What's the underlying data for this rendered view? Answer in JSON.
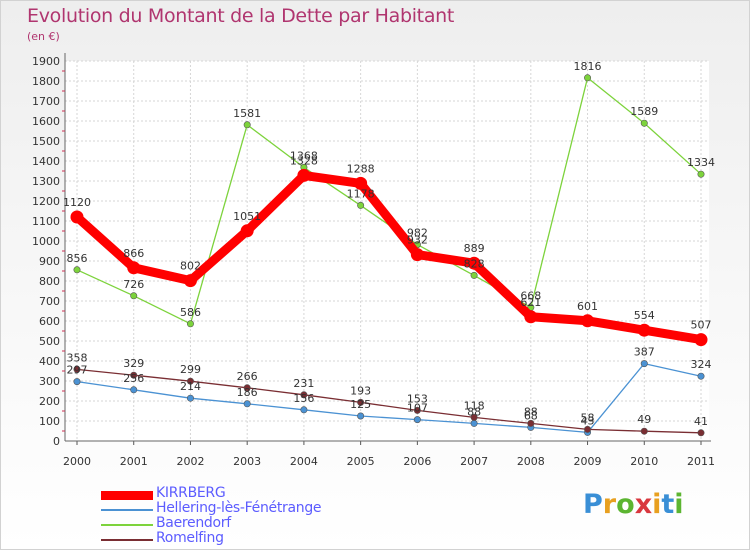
{
  "chart_data": {
    "type": "line",
    "title": "Evolution du Montant de la Dette par Habitant",
    "subtitle": "(en €)",
    "x": [
      "2000",
      "2001",
      "2002",
      "2003",
      "2004",
      "2005",
      "2006",
      "2007",
      "2008",
      "2009",
      "2010",
      "2011"
    ],
    "yticks": [
      0,
      100,
      200,
      300,
      400,
      500,
      600,
      700,
      800,
      900,
      1000,
      1100,
      1200,
      1300,
      1400,
      1500,
      1600,
      1700,
      1800,
      1900
    ],
    "ylim": [
      0,
      1900
    ],
    "grid": true,
    "legend_position": "bottom-left",
    "series": [
      {
        "name": "KIRRBERG",
        "color": "#ff0000",
        "values": [
          1120,
          866,
          802,
          1051,
          1328,
          1288,
          932,
          889,
          621,
          601,
          554,
          507
        ],
        "labels": [
          "1120",
          "866",
          "802",
          "1051",
          "1328",
          "1288",
          "932",
          "889",
          "621",
          "601",
          "554",
          "507"
        ]
      },
      {
        "name": "Hellering-lès-Fénétrange",
        "color": "#4b92d3",
        "values": [
          297,
          256,
          214,
          186,
          156,
          125,
          107,
          88,
          68,
          43,
          387,
          324
        ],
        "labels": [
          "297",
          "256",
          "214",
          "186",
          "156",
          "125",
          "107",
          "88",
          "68",
          "43",
          "387",
          "324"
        ]
      },
      {
        "name": "Baerendorf",
        "color": "#7dd33c",
        "values": [
          856,
          726,
          586,
          1581,
          1368,
          1178,
          982,
          828,
          668,
          1816,
          1589,
          1334
        ],
        "labels": [
          "856",
          "726",
          "586",
          "1581",
          "1368",
          "1178",
          "982",
          "828",
          "668",
          "1816",
          "1589",
          "1334"
        ]
      },
      {
        "name": "Romelfing",
        "color": "#7a2e33",
        "values": [
          358,
          329,
          299,
          266,
          231,
          193,
          153,
          118,
          88,
          58,
          49,
          41
        ],
        "labels": [
          "358",
          "329",
          "299",
          "266",
          "231",
          "193",
          "153",
          "118",
          "88",
          "58",
          "49",
          "41"
        ]
      }
    ]
  },
  "branding": {
    "letters": [
      "P",
      "r",
      "o",
      "x",
      "i",
      "t",
      "i"
    ]
  }
}
